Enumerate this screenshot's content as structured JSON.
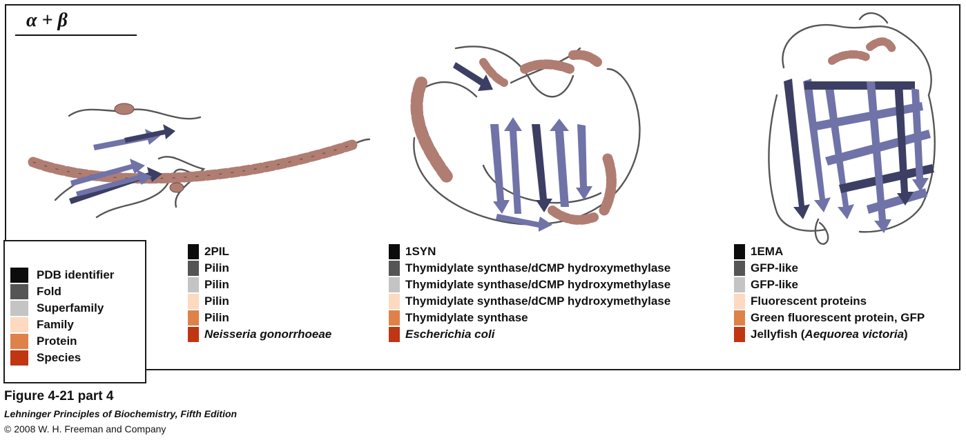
{
  "figure": {
    "class_label": "α + β",
    "figure_number": "Figure 4-21 part 4",
    "book_title": "Lehninger Principles of Biochemistry, Fifth Edition",
    "copyright": "© 2008 W. H. Freeman and Company"
  },
  "colors": {
    "pdb": "#0c0c0c",
    "fold": "#555555",
    "superfamily": "#c4c4c4",
    "family": "#fcd9c1",
    "protein": "#de8249",
    "species": "#c03612",
    "helix": "#b07d73",
    "strand": "#7073a8",
    "strand_dark": "#3c3f63",
    "loop": "#555555"
  },
  "legend": [
    {
      "key": "pdb",
      "label": "PDB identifier"
    },
    {
      "key": "fold",
      "label": "Fold"
    },
    {
      "key": "superfamily",
      "label": "Superfamily"
    },
    {
      "key": "family",
      "label": "Family"
    },
    {
      "key": "protein",
      "label": "Protein"
    },
    {
      "key": "species",
      "label": "Species"
    }
  ],
  "structures": [
    {
      "pdb": "2PIL",
      "fold": "Pilin",
      "superfamily": "Pilin",
      "family": "Pilin",
      "protein": "Pilin",
      "species": "Neisseria gonorrhoeae"
    },
    {
      "pdb": "1SYN",
      "fold": "Thymidylate synthase/dCMP hydroxymethylase",
      "superfamily": "Thymidylate synthase/dCMP hydroxymethylase",
      "family": "Thymidylate synthase/dCMP hydroxymethylase",
      "protein": "Thymidylate synthase",
      "species": "Escherichia coli"
    },
    {
      "pdb": "1EMA",
      "fold": "GFP-like",
      "superfamily": "GFP-like",
      "family": "Fluorescent proteins",
      "protein": "Green fluorescent protein, GFP",
      "species_prefix": "Jellyfish (",
      "species": "Aequorea victoria",
      "species_suffix": ")"
    }
  ]
}
